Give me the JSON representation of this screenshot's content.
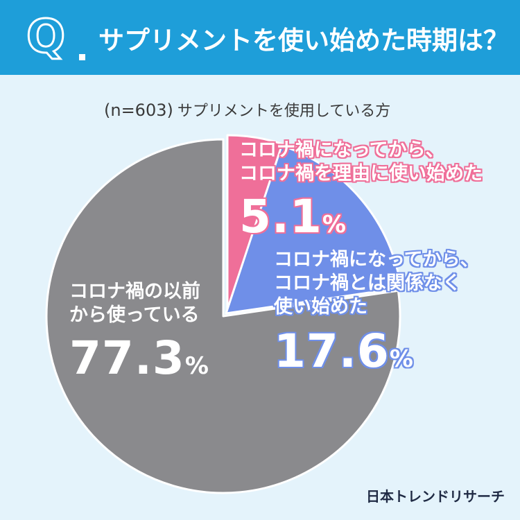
{
  "header": {
    "q_mark": "Q",
    "title": "サプリメントを使い始めた時期は？"
  },
  "subtitle": {
    "n": "(n=603)",
    "text": "サプリメントを使用している方"
  },
  "chart_data": {
    "type": "pie",
    "start": "12 o'clock",
    "direction": "clockwise",
    "slices": [
      {
        "label": "コロナ禍になってから、コロナ禍を理由に使い始めた",
        "label_lines": [
          "コロナ禍になってから、",
          "コロナ禍を理由に使い始めた"
        ],
        "value": 5.1,
        "display": "5.1",
        "color": "#ef6f99"
      },
      {
        "label": "コロナ禍になってから、コロナ禍とは関係なく使い始めた",
        "label_lines": [
          "コロナ禍になってから、",
          "コロナ禍とは関係なく",
          "使い始めた"
        ],
        "value": 17.6,
        "display": "17.6",
        "color": "#6f8fe8"
      },
      {
        "label": "コロナ禍の以前から使っている",
        "label_lines": [
          "コロナ禍の以前",
          "から使っている"
        ],
        "value": 77.3,
        "display": "77.3",
        "color": "#8a8a8d"
      }
    ],
    "unit": "%"
  },
  "brand": "日本トレンドリサーチ",
  "colors": {
    "header_bg": "#1e9ed9",
    "page_bg": "#e4f3fb"
  }
}
